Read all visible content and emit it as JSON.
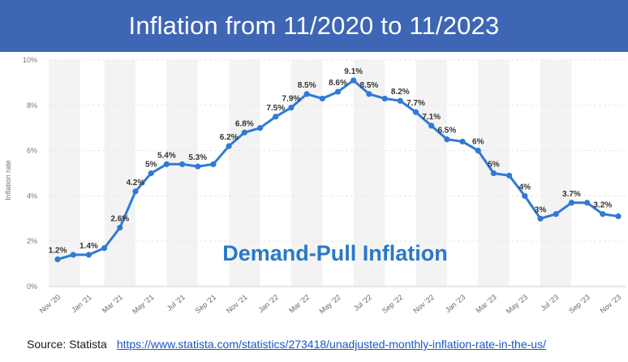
{
  "title": "Inflation from 11/2020 to 11/2023",
  "source": {
    "label": "Source: Statista",
    "url": "https://www.statista.com/statistics/273418/unadjusted-monthly-inflation-rate-in-the-us/"
  },
  "chart_data": {
    "type": "line",
    "ylabel": "Inflation rate",
    "ylim": [
      0,
      10
    ],
    "y_ticks": [
      "0%",
      "2%",
      "4%",
      "6%",
      "8%",
      "10%"
    ],
    "y_tick_values": [
      0,
      2,
      4,
      6,
      8,
      10
    ],
    "x_tick_labels": [
      "Nov '20",
      "Jan '21",
      "Mar '21",
      "May '21",
      "Jul '21",
      "Sep '21",
      "Nov '21",
      "Jan '22",
      "Mar '22",
      "May '22",
      "Jul '22",
      "Sep '22",
      "Nov '22",
      "Jan '23",
      "Mar '23",
      "May '23",
      "Jul '23",
      "Sep '23",
      "Nov '23"
    ],
    "x": [
      "Nov '20",
      "Dec '20",
      "Jan '21",
      "Feb '21",
      "Mar '21",
      "Apr '21",
      "May '21",
      "Jun '21",
      "Jul '21",
      "Aug '21",
      "Sep '21",
      "Oct '21",
      "Nov '21",
      "Dec '21",
      "Jan '22",
      "Feb '22",
      "Mar '22",
      "Apr '22",
      "May '22",
      "Jun '22",
      "Jul '22",
      "Aug '22",
      "Sep '22",
      "Oct '22",
      "Nov '22",
      "Dec '22",
      "Jan '23",
      "Feb '23",
      "Mar '23",
      "Apr '23",
      "May '23",
      "Jun '23",
      "Jul '23",
      "Aug '23",
      "Sep '23",
      "Oct '23",
      "Nov '23"
    ],
    "series": [
      {
        "values": [
          1.2,
          1.4,
          1.4,
          1.7,
          2.6,
          4.2,
          5.0,
          5.4,
          5.4,
          5.3,
          5.4,
          6.2,
          6.8,
          7.0,
          7.5,
          7.9,
          8.5,
          8.3,
          8.6,
          9.1,
          8.5,
          8.3,
          8.2,
          7.7,
          7.1,
          6.5,
          6.4,
          6.0,
          5.0,
          4.9,
          4.0,
          3.0,
          3.2,
          3.7,
          3.7,
          3.2,
          3.1
        ],
        "color": "#2e7ad6"
      }
    ],
    "data_labels": [
      {
        "index": 0,
        "text": "1.2%"
      },
      {
        "index": 2,
        "text": "1.4%"
      },
      {
        "index": 4,
        "text": "2.6%"
      },
      {
        "index": 5,
        "text": "4.2%"
      },
      {
        "index": 6,
        "text": "5%"
      },
      {
        "index": 7,
        "text": "5.4%"
      },
      {
        "index": 9,
        "text": "5.3%"
      },
      {
        "index": 11,
        "text": "6.2%"
      },
      {
        "index": 12,
        "text": "6.8%"
      },
      {
        "index": 14,
        "text": "7.5%"
      },
      {
        "index": 15,
        "text": "7.9%"
      },
      {
        "index": 16,
        "text": "8.5%"
      },
      {
        "index": 18,
        "text": "8.6%"
      },
      {
        "index": 19,
        "text": "9.1%"
      },
      {
        "index": 20,
        "text": "8.5%"
      },
      {
        "index": 22,
        "text": "8.2%"
      },
      {
        "index": 23,
        "text": "7.7%"
      },
      {
        "index": 24,
        "text": "7.1%"
      },
      {
        "index": 25,
        "text": "6.5%"
      },
      {
        "index": 27,
        "text": "6%"
      },
      {
        "index": 28,
        "text": "5%"
      },
      {
        "index": 30,
        "text": "4%"
      },
      {
        "index": 31,
        "text": "3%"
      },
      {
        "index": 33,
        "text": "3.7%"
      },
      {
        "index": 35,
        "text": "3.2%"
      }
    ],
    "annotation": "Demand-Pull Inflation",
    "grid": true,
    "alternating_bands": true
  }
}
